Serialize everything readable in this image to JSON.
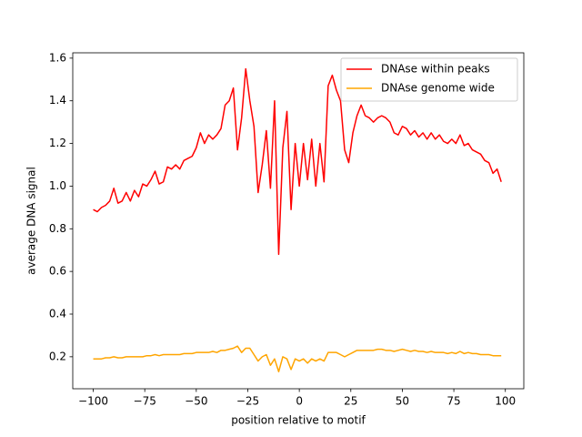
{
  "chart_data": {
    "type": "line",
    "xlabel": "position relative to motif",
    "ylabel": "average DNA signal",
    "x": [
      -100,
      -98,
      -96,
      -94,
      -92,
      -90,
      -88,
      -86,
      -84,
      -82,
      -80,
      -78,
      -76,
      -74,
      -72,
      -70,
      -68,
      -66,
      -64,
      -62,
      -60,
      -58,
      -56,
      -54,
      -52,
      -50,
      -48,
      -46,
      -44,
      -42,
      -40,
      -38,
      -36,
      -34,
      -32,
      -30,
      -28,
      -26,
      -24,
      -22,
      -20,
      -18,
      -16,
      -14,
      -12,
      -10,
      -8,
      -6,
      -4,
      -2,
      0,
      2,
      4,
      6,
      8,
      10,
      12,
      14,
      16,
      18,
      20,
      22,
      24,
      26,
      28,
      30,
      32,
      34,
      36,
      38,
      40,
      42,
      44,
      46,
      48,
      50,
      52,
      54,
      56,
      58,
      60,
      62,
      64,
      66,
      68,
      70,
      72,
      74,
      76,
      78,
      80,
      82,
      84,
      86,
      88,
      90,
      92,
      94,
      96,
      98
    ],
    "series": [
      {
        "name": "DNAse within peaks",
        "color": "#ff0000",
        "values": [
          0.89,
          0.88,
          0.9,
          0.91,
          0.93,
          0.99,
          0.92,
          0.93,
          0.97,
          0.93,
          0.98,
          0.95,
          1.01,
          1.0,
          1.03,
          1.07,
          1.01,
          1.02,
          1.09,
          1.08,
          1.1,
          1.08,
          1.12,
          1.13,
          1.14,
          1.18,
          1.25,
          1.2,
          1.24,
          1.22,
          1.24,
          1.27,
          1.38,
          1.4,
          1.46,
          1.17,
          1.32,
          1.55,
          1.4,
          1.28,
          0.97,
          1.1,
          1.26,
          0.99,
          1.4,
          0.68,
          1.18,
          1.35,
          0.89,
          1.2,
          1.0,
          1.2,
          1.03,
          1.22,
          1.0,
          1.2,
          1.02,
          1.47,
          1.52,
          1.45,
          1.4,
          1.17,
          1.11,
          1.25,
          1.33,
          1.38,
          1.33,
          1.32,
          1.3,
          1.32,
          1.33,
          1.32,
          1.3,
          1.25,
          1.24,
          1.28,
          1.27,
          1.24,
          1.26,
          1.23,
          1.25,
          1.22,
          1.25,
          1.22,
          1.24,
          1.21,
          1.2,
          1.22,
          1.2,
          1.24,
          1.19,
          1.2,
          1.17,
          1.16,
          1.15,
          1.12,
          1.11,
          1.06,
          1.08,
          1.02
        ]
      },
      {
        "name": "DNAse genome wide",
        "color": "#ffa500",
        "values": [
          0.19,
          0.19,
          0.19,
          0.195,
          0.195,
          0.2,
          0.195,
          0.195,
          0.2,
          0.2,
          0.2,
          0.2,
          0.2,
          0.205,
          0.205,
          0.21,
          0.205,
          0.21,
          0.21,
          0.21,
          0.21,
          0.21,
          0.215,
          0.215,
          0.215,
          0.22,
          0.22,
          0.22,
          0.22,
          0.225,
          0.22,
          0.23,
          0.23,
          0.235,
          0.24,
          0.25,
          0.22,
          0.24,
          0.24,
          0.21,
          0.18,
          0.2,
          0.21,
          0.16,
          0.19,
          0.13,
          0.2,
          0.19,
          0.14,
          0.19,
          0.18,
          0.19,
          0.17,
          0.19,
          0.18,
          0.19,
          0.18,
          0.22,
          0.22,
          0.22,
          0.21,
          0.2,
          0.21,
          0.22,
          0.23,
          0.23,
          0.23,
          0.23,
          0.23,
          0.235,
          0.235,
          0.23,
          0.23,
          0.225,
          0.23,
          0.235,
          0.23,
          0.225,
          0.23,
          0.225,
          0.225,
          0.22,
          0.225,
          0.22,
          0.22,
          0.22,
          0.215,
          0.22,
          0.215,
          0.225,
          0.215,
          0.22,
          0.215,
          0.215,
          0.21,
          0.21,
          0.21,
          0.205,
          0.205,
          0.205
        ]
      }
    ],
    "xlim": [
      -109.95,
      108.95
    ],
    "xticks": [
      {
        "value": -100,
        "label": "−100"
      },
      {
        "value": -75,
        "label": "−75"
      },
      {
        "value": -50,
        "label": "−50"
      },
      {
        "value": -25,
        "label": "−25"
      },
      0,
      25,
      50,
      75,
      100
    ],
    "ylim": [
      0.05,
      1.625
    ],
    "yticks": [
      0.2,
      0.4,
      0.6,
      0.8,
      {
        "value": 1,
        "label": "1.0"
      },
      1.2,
      1.4,
      1.6
    ],
    "grid": false,
    "legend": "upper right"
  }
}
